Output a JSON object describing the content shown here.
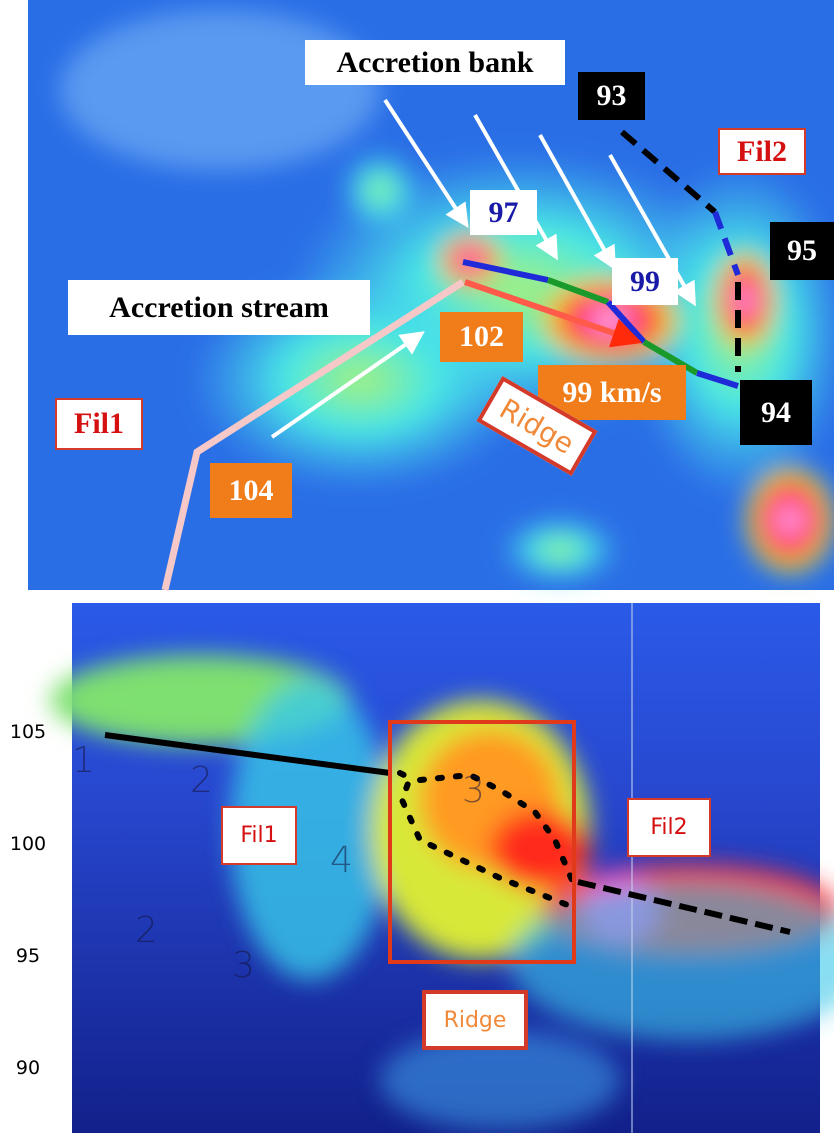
{
  "top_panel": {
    "title_labels": {
      "accretion_bank": "Accretion bank",
      "accretion_stream": "Accretion stream"
    },
    "filaments": {
      "fil1": "Fil1",
      "fil2": "Fil2"
    },
    "ridge": "Ridge",
    "velocity_labels": {
      "v93": "93",
      "v95": "95",
      "v94": "94",
      "v97": "97",
      "v99": "99",
      "v102": "102",
      "v99kms": "99 km/s",
      "v104": "104"
    }
  },
  "bottom_panel": {
    "yticks": [
      105,
      100,
      95,
      90
    ],
    "boxes": {
      "fil1": "Fil1",
      "fil2": "Fil2",
      "ridge": "Ridge"
    },
    "faint_marks": [
      "1",
      "2",
      "3",
      "4",
      "2",
      "3"
    ]
  }
}
